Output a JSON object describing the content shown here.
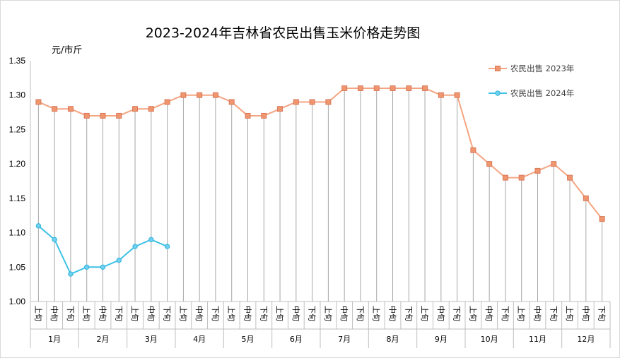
{
  "chart_data": {
    "type": "line",
    "title": "2023-2024年吉林省农民出售玉米价格走势图",
    "ylabel": "元/市斤",
    "ylim": [
      1.0,
      1.35
    ],
    "yticks": [
      "1.00",
      "1.05",
      "1.10",
      "1.15",
      "1.20",
      "1.25",
      "1.30",
      "1.35"
    ],
    "xtick_labels": [
      "上旬",
      "中旬",
      "下旬"
    ],
    "months": [
      "1月",
      "2月",
      "3月",
      "4月",
      "5月",
      "6月",
      "7月",
      "8月",
      "9月",
      "10月",
      "11月",
      "12月"
    ],
    "legend_position": "top-right",
    "series": [
      {
        "name": "农民出售 2023年",
        "color": "#f4a582",
        "marker": "square",
        "values": [
          1.29,
          1.28,
          1.28,
          1.27,
          1.27,
          1.27,
          1.28,
          1.28,
          1.29,
          1.3,
          1.3,
          1.3,
          1.29,
          1.27,
          1.27,
          1.28,
          1.29,
          1.29,
          1.29,
          1.31,
          1.31,
          1.31,
          1.31,
          1.31,
          1.31,
          1.3,
          1.3,
          1.22,
          1.2,
          1.18,
          1.18,
          1.19,
          1.2,
          1.18,
          1.15,
          1.12
        ]
      },
      {
        "name": "农民出售 2024年",
        "color": "#3ec1e6",
        "marker": "circle",
        "values": [
          1.11,
          1.09,
          1.04,
          1.05,
          1.05,
          1.06,
          1.08,
          1.09,
          1.08
        ]
      }
    ]
  }
}
